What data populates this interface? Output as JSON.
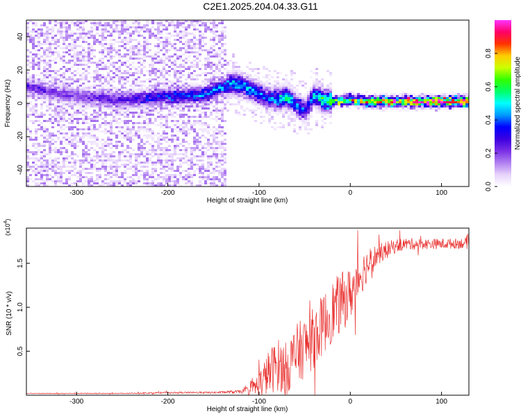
{
  "title": "C2E1.2025.204.04.33.G11",
  "colors": {
    "snr_line": "#e8302e",
    "colormap": [
      "#ffffff",
      "#e6d2fb",
      "#b07ff0",
      "#7a2fe6",
      "#3b00e0",
      "#0000ff",
      "#0099ff",
      "#00ffff",
      "#00ff66",
      "#33ff00",
      "#ccff00",
      "#ffcc00",
      "#ff3300",
      "#ff0066",
      "#ff33ff"
    ]
  },
  "chart_data": [
    {
      "type": "heatmap",
      "title": "",
      "xlabel": "Height of straight line (km)",
      "ylabel": "Frequency (Hz)",
      "xlim": [
        -355,
        130
      ],
      "ylim": [
        -50,
        50
      ],
      "xticks": [
        -300,
        -200,
        -100,
        0,
        100
      ],
      "xtick_labels": [
        "-300",
        "-200",
        "-100",
        "0",
        "100"
      ],
      "yticks": [
        40,
        20,
        0,
        -20,
        -40
      ],
      "ytick_labels": [
        "40",
        "20",
        "0",
        "-20",
        "-40"
      ],
      "colorbar": {
        "label": "Normalized spectral amplitude",
        "range": [
          0,
          1
        ],
        "ticks": [
          0.0,
          0.2,
          0.4,
          0.6,
          0.8
        ],
        "tick_labels": [
          "0.0",
          "0.2",
          "0.4",
          "0.6",
          "0.8"
        ]
      },
      "ridge": {
        "x": [
          -355,
          -300,
          -250,
          -200,
          -160,
          -130,
          -115,
          -100,
          -90,
          -80,
          -70,
          -60,
          -50,
          -40,
          -30,
          -20,
          0,
          20,
          50,
          80,
          100,
          130
        ],
        "frequency": [
          10,
          4,
          2,
          4,
          5,
          12,
          10,
          6,
          3,
          2,
          4,
          0,
          -5,
          5,
          2,
          1,
          2,
          1,
          1,
          1,
          1,
          1
        ],
        "amplitude": [
          0.25,
          0.2,
          0.25,
          0.35,
          0.4,
          0.45,
          0.45,
          0.4,
          0.35,
          0.45,
          0.5,
          0.4,
          0.35,
          0.45,
          0.55,
          0.6,
          0.7,
          0.8,
          0.85,
          0.9,
          0.9,
          0.8
        ]
      },
      "noise_floor_end_x": -135,
      "grid": false
    },
    {
      "type": "line",
      "title": "",
      "xlabel": "Height of straight line (km)",
      "ylabel": "SNR (10 * v/v)",
      "y_multiplier_label": "(x10",
      "y_multiplier_exp": "4",
      "xlim": [
        -355,
        130
      ],
      "ylim": [
        0,
        1.9
      ],
      "xticks": [
        -300,
        -200,
        -100,
        0,
        100
      ],
      "xtick_labels": [
        "-300",
        "-200",
        "-100",
        "0",
        "100"
      ],
      "yticks": [
        0.5,
        1.0,
        1.5
      ],
      "ytick_labels": [
        "0.5",
        "1.0",
        "1.5"
      ],
      "series": [
        {
          "x": [
            -355,
            -300,
            -250,
            -200,
            -150,
            -120,
            -110,
            -100,
            -90,
            -80,
            -70,
            -60,
            -50,
            -40,
            -30,
            -20,
            -10,
            0,
            10,
            20,
            30,
            40,
            50,
            60,
            80,
            100,
            130
          ],
          "y": [
            0.02,
            0.02,
            0.02,
            0.03,
            0.03,
            0.04,
            0.06,
            0.12,
            0.25,
            0.35,
            0.3,
            0.45,
            0.55,
            0.65,
            0.8,
            0.95,
            1.05,
            1.15,
            1.35,
            1.5,
            1.6,
            1.65,
            1.7,
            1.72,
            1.72,
            1.72,
            1.73
          ],
          "noise": [
            0.003,
            0.005,
            0.005,
            0.008,
            0.01,
            0.02,
            0.05,
            0.15,
            0.25,
            0.3,
            0.3,
            0.35,
            0.35,
            0.35,
            0.35,
            0.35,
            0.35,
            0.3,
            0.25,
            0.18,
            0.12,
            0.1,
            0.08,
            0.07,
            0.06,
            0.06,
            0.06
          ]
        }
      ],
      "grid": false
    }
  ]
}
